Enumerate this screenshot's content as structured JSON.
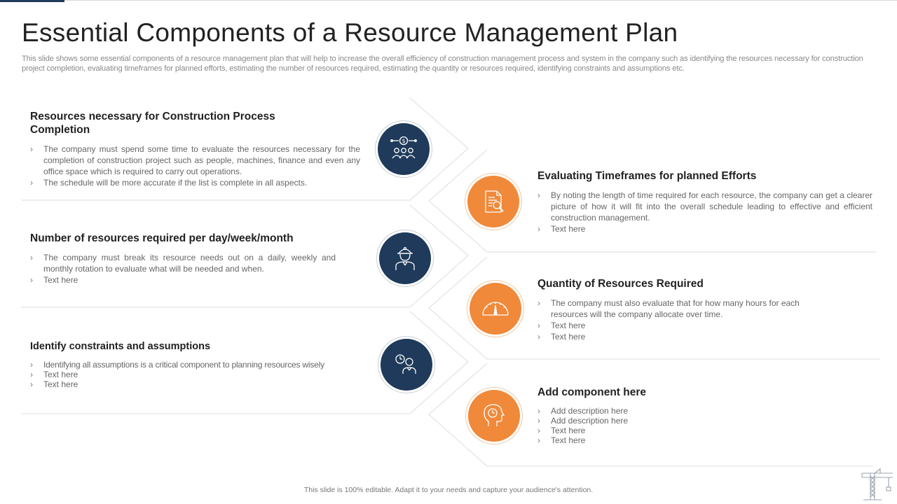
{
  "header": {
    "title": "Essential Components of a Resource Management Plan",
    "subtitle": "This slide shows some essential components of a resource management plan that will help to increase the overall efficiency of construction management process and system in the company such as identifying the resources necessary for construction project completion, evaluating timeframes for planned efforts, estimating the number of resources required, estimating the quantity or resources required, identifying constraints and assumptions etc."
  },
  "left": [
    {
      "title": "Resources necessary for Construction Process Completion",
      "icon": "money-team-icon",
      "bullets": [
        "The company must spend some time to evaluate the resources necessary for the completion of construction project such as people, machines, finance and even any office space which is required to carry out operations.",
        "The schedule will be more accurate if the list is complete in all aspects."
      ]
    },
    {
      "title": "Number of resources required per day/week/month",
      "icon": "worker-icon",
      "bullets": [
        "The company must break its resource needs out on a daily, weekly and monthly rotation to evaluate what will be needed and when.",
        "Text here"
      ]
    },
    {
      "title": "Identify constraints and assumptions",
      "icon": "person-clock-icon",
      "bullets": [
        "Identifying all assumptions is a critical component to planning resources wisely",
        "Text here",
        "Text here"
      ]
    }
  ],
  "right": [
    {
      "title": "Evaluating Timeframes for planned Efforts",
      "icon": "document-search-icon",
      "bullets": [
        "By noting the length of time required for each resource, the company can get a clearer picture of how it will fit into the overall  schedule leading to effective and efficient construction management.",
        "Text here"
      ]
    },
    {
      "title": "Quantity of Resources Required",
      "icon": "gauge-icon",
      "bullets": [
        "The company must also evaluate  that for how many hours for each resources will the company allocate over time.",
        "Text here",
        "Text here"
      ]
    },
    {
      "title": "Add component here",
      "icon": "head-clock-icon",
      "bullets": [
        "Add description here",
        "Add description here",
        "Text here",
        "Text here"
      ]
    }
  ],
  "footer": {
    "note": "This slide is 100% editable.  Adapt it to your needs and capture your audience's attention.",
    "logo_icon": "crane-icon"
  },
  "colors": {
    "navy": "#1f3a5a",
    "orange": "#f0893a",
    "text": "#666666",
    "heading": "#222222"
  }
}
